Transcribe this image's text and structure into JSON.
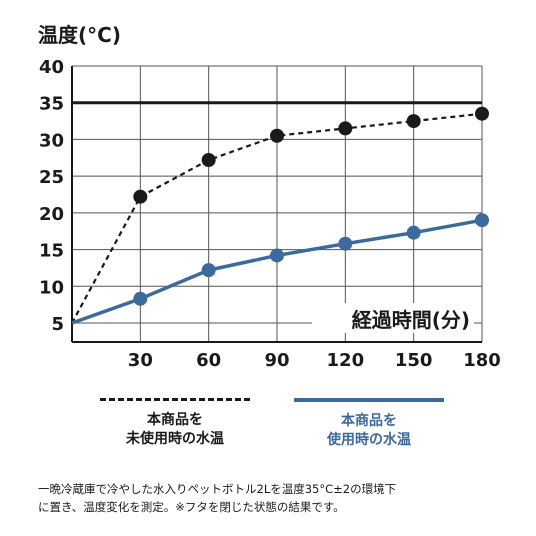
{
  "chart_data": {
    "type": "line",
    "ylabel": "温度(°C)",
    "xlabel": "経過時間(分)",
    "x": [
      0,
      30,
      60,
      90,
      120,
      150,
      180
    ],
    "x_ticks": [
      "30",
      "60",
      "90",
      "120",
      "150",
      "180"
    ],
    "y_ticks": [
      "5",
      "10",
      "15",
      "20",
      "25",
      "30",
      "35",
      "40"
    ],
    "ylim": [
      5,
      40
    ],
    "xlim": [
      0,
      180
    ],
    "grid": true,
    "reference_line": {
      "y": 35
    },
    "series": [
      {
        "name": "本商品を未使用時の水温",
        "style": "dashed",
        "color": "#1a1a1a",
        "values": [
          5,
          22.2,
          27.2,
          30.5,
          31.5,
          32.5,
          33.5
        ]
      },
      {
        "name": "本商品を使用時の水温",
        "style": "solid",
        "color": "#3d6a9e",
        "values": [
          5,
          8.3,
          12.2,
          14.2,
          15.8,
          17.3,
          19.0
        ]
      }
    ]
  },
  "legend": {
    "black_line1": "本商品を",
    "black_line2": "未使用時の水温",
    "blue_line1": "本商品を",
    "blue_line2": "使用時の水温"
  },
  "footnote": {
    "line1": "一晩冷蔵庫で冷やした水入りペットボトル2Lを温度35°C±2の環境下",
    "line2": "に置き、温度変化を測定。※フタを閉じた状態の結果です。"
  }
}
